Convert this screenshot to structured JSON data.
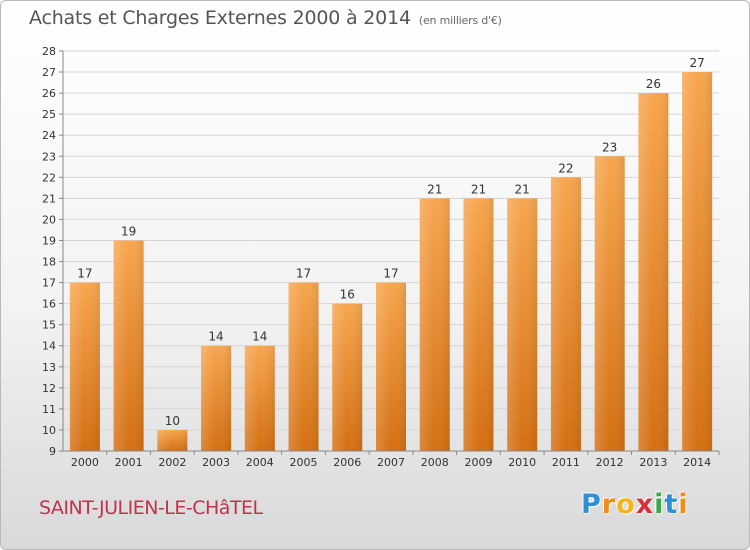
{
  "header": {
    "title": "Achats et Charges Externes 2000 à 2014",
    "unit": "(en milliers d'€)"
  },
  "footer": {
    "place": "SAINT-JULIEN-LE-CHâTEL",
    "logo_letters": [
      {
        "ch": "P",
        "color": "#2f8fd6"
      },
      {
        "ch": "r",
        "color": "#f28c1b"
      },
      {
        "ch": "o",
        "color": "#f2b51b"
      },
      {
        "ch": "x",
        "color": "#d8303a"
      },
      {
        "ch": "i",
        "color": "#3aa845"
      },
      {
        "ch": "t",
        "color": "#2f8fd6"
      },
      {
        "ch": "i",
        "color": "#f28c1b"
      }
    ]
  },
  "chart_data": {
    "type": "bar",
    "title": "Achats et Charges Externes 2000 à 2014",
    "subtitle": "(en milliers d'€)",
    "xlabel": "",
    "ylabel": "",
    "categories": [
      "2000",
      "2001",
      "2002",
      "2003",
      "2004",
      "2005",
      "2006",
      "2007",
      "2008",
      "2009",
      "2010",
      "2011",
      "2012",
      "2013",
      "2014"
    ],
    "values": [
      17,
      19,
      10,
      14,
      14,
      17,
      16,
      17,
      21,
      21,
      21,
      22,
      23,
      26,
      27
    ],
    "ylim": [
      9,
      28
    ],
    "yticks": [
      9,
      10,
      11,
      12,
      13,
      14,
      15,
      16,
      17,
      18,
      19,
      20,
      21,
      22,
      23,
      24,
      25,
      26,
      27,
      28
    ],
    "grid": true,
    "bar_color": "#f08a2c"
  }
}
